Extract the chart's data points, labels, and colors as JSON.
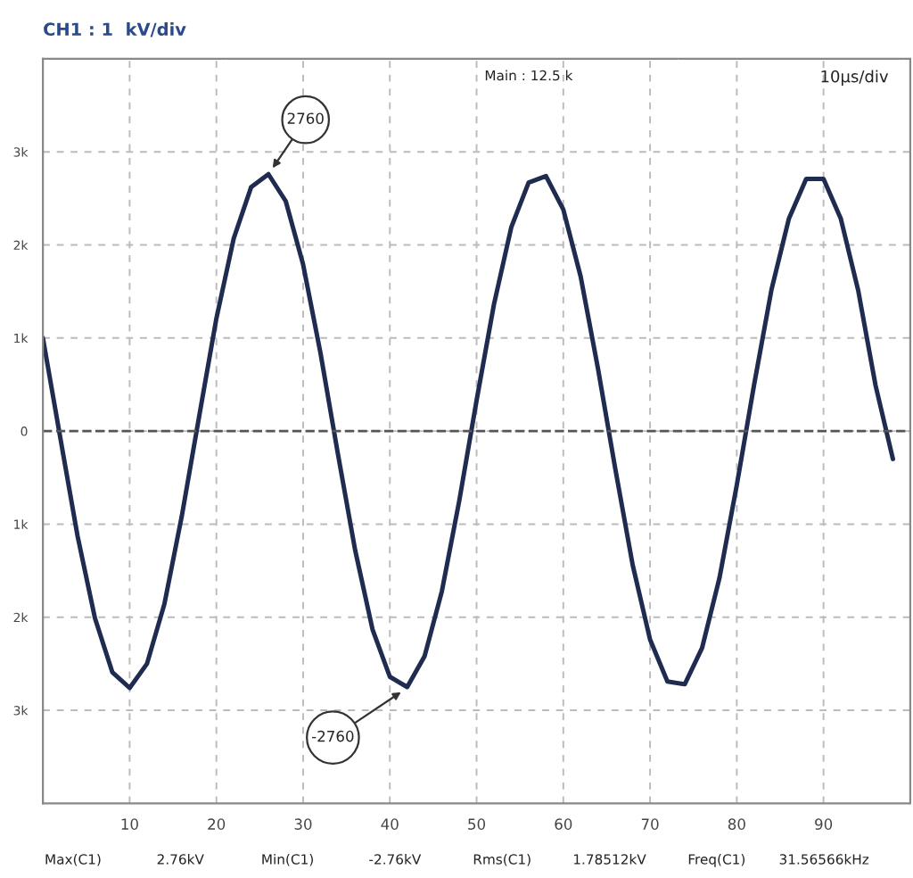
{
  "chart_data": {
    "type": "line",
    "title": "CH1 : 1  kV/div",
    "series": [
      {
        "color": "#1f2b4f",
        "x": [
          0,
          2,
          4,
          6,
          8,
          10,
          12,
          14,
          16,
          18,
          20,
          22,
          24,
          26,
          28,
          30,
          32,
          34,
          36,
          38,
          40,
          42,
          44,
          46,
          48,
          50,
          52,
          54,
          56,
          58,
          60,
          62,
          64,
          66,
          68,
          70,
          72,
          74,
          76,
          78,
          80,
          82,
          84,
          86,
          88,
          90,
          92,
          94,
          96,
          98
        ],
        "values": [
          1000,
          -70,
          -1130,
          -2010,
          -2590,
          -2760,
          -2500,
          -1860,
          -920,
          150,
          1210,
          2070,
          2620,
          2760,
          2470,
          1790,
          840,
          -240,
          -1280,
          -2130,
          -2640,
          -2750,
          -2420,
          -1720,
          -750,
          330,
          1360,
          2190,
          2670,
          2740,
          2380,
          1660,
          670,
          -410,
          -1440,
          -2240,
          -2690,
          -2720,
          -2330,
          -1580,
          -580,
          500,
          1520,
          2280,
          2710,
          2710,
          2280,
          1510,
          490,
          -300
        ]
      }
    ],
    "xlim": [
      0,
      100
    ],
    "xticks": [
      10,
      20,
      30,
      40,
      50,
      60,
      70,
      80,
      90
    ],
    "ylim": [
      -4000,
      4000
    ],
    "yticks": [
      {
        "value": -3000,
        "label": "3k"
      },
      {
        "value": -2000,
        "label": "2k"
      },
      {
        "value": -1000,
        "label": "1k"
      },
      0,
      {
        "value": 1000,
        "label": "1k"
      },
      {
        "value": 2000,
        "label": "2k"
      },
      {
        "value": 3000,
        "label": "3k"
      }
    ],
    "grid": true,
    "line_style": "solid",
    "ref_lines": [
      {
        "axis": "y",
        "value": 0,
        "color": "#555555",
        "line_style": "dashed"
      }
    ],
    "annotations": [
      {
        "text": "2760",
        "x": 26,
        "y": 2760
      },
      {
        "text": "-2760",
        "x": 42,
        "y": -2760
      },
      "Main : 12.5 k",
      "10µs/div",
      "Max(C1)",
      "2.76kV",
      "Min(C1)",
      "-2.76kV",
      "Rms(C1)",
      "1.78512kV",
      "Freq(C1)",
      "31.56566kHz"
    ]
  }
}
